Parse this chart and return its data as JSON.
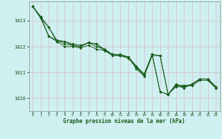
{
  "xlabel": "Graphe pression niveau de la mer (hPa)",
  "bg_color": "#cff0f0",
  "grid_color": "#d4b8c8",
  "line_color": "#1a5c1a",
  "xlim": [
    -0.5,
    23.5
  ],
  "ylim": [
    1019.5,
    1023.75
  ],
  "yticks": [
    1020,
    1021,
    1022,
    1023
  ],
  "xticks": [
    0,
    1,
    2,
    3,
    4,
    5,
    6,
    7,
    8,
    9,
    10,
    11,
    12,
    13,
    14,
    15,
    16,
    17,
    18,
    19,
    20,
    21,
    22,
    23
  ],
  "series": [
    [
      1023.55,
      1023.1,
      1022.75,
      1022.2,
      1022.0,
      1022.0,
      1021.95,
      1022.05,
      1021.9,
      1021.85,
      1021.7,
      1021.65,
      1021.6,
      1021.15,
      1020.85,
      1021.65,
      1021.65,
      1020.15,
      1020.45,
      1020.45,
      1020.5,
      1020.7,
      1020.7,
      1020.4
    ],
    [
      1023.55,
      1023.15,
      1022.75,
      1022.25,
      1022.1,
      1022.05,
      1022.0,
      1022.15,
      1022.0,
      1021.9,
      1021.7,
      1021.65,
      1021.6,
      1021.2,
      1020.9,
      1021.7,
      1021.65,
      1020.15,
      1020.5,
      1020.5,
      1020.5,
      1020.7,
      1020.7,
      1020.4
    ],
    [
      1023.55,
      1023.1,
      1022.4,
      1022.2,
      1022.2,
      1022.05,
      1022.0,
      1022.15,
      1022.1,
      1021.85,
      1021.65,
      1021.65,
      1021.55,
      1021.2,
      1020.9,
      1021.7,
      1020.25,
      1020.15,
      1020.5,
      1020.4,
      1020.55,
      1020.75,
      1020.75,
      1020.45
    ],
    [
      1023.55,
      1023.15,
      1022.4,
      1022.25,
      1022.2,
      1022.1,
      1022.05,
      1022.15,
      1022.1,
      1021.9,
      1021.7,
      1021.7,
      1021.6,
      1021.25,
      1020.95,
      1021.7,
      1020.25,
      1020.15,
      1020.55,
      1020.45,
      1020.55,
      1020.75,
      1020.75,
      1020.45
    ]
  ]
}
